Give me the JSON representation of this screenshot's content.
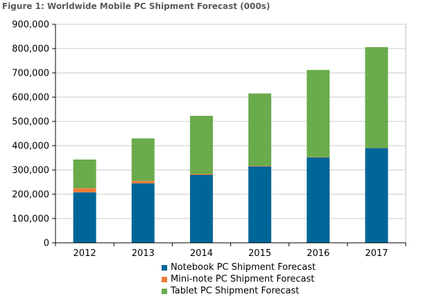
{
  "title": "Figure 1: Worldwide Mobile PC Shipment Forecast (000s)",
  "chart_data": {
    "type": "bar",
    "stacked": true,
    "title": "Figure 1: Worldwide Mobile PC Shipment Forecast (000s)",
    "categories": [
      "2012",
      "2013",
      "2014",
      "2015",
      "2016",
      "2017"
    ],
    "series": [
      {
        "name": "Notebook PC Shipment Forecast",
        "color": "#006699",
        "values": [
          208000,
          245000,
          280000,
          315000,
          352000,
          390000
        ]
      },
      {
        "name": "Mini-note PC Shipment Forecast",
        "color": "#f07c38",
        "values": [
          17000,
          10000,
          4000,
          2000,
          1000,
          1000
        ]
      },
      {
        "name": "Tablet PC Shipment Forecast",
        "color": "#6aab4c",
        "values": [
          118000,
          175000,
          239000,
          298000,
          359000,
          415000
        ]
      }
    ],
    "ylim": [
      0,
      900000
    ],
    "yticks": [
      0,
      100000,
      200000,
      300000,
      400000,
      500000,
      600000,
      700000,
      800000,
      900000
    ],
    "ytick_labels": [
      "0",
      "100,000",
      "200,000",
      "300,000",
      "400,000",
      "500,000",
      "600,000",
      "700,000",
      "800,000",
      "900,000"
    ],
    "grid": true,
    "legend_position": "bottom",
    "xlabel": "",
    "ylabel": ""
  }
}
